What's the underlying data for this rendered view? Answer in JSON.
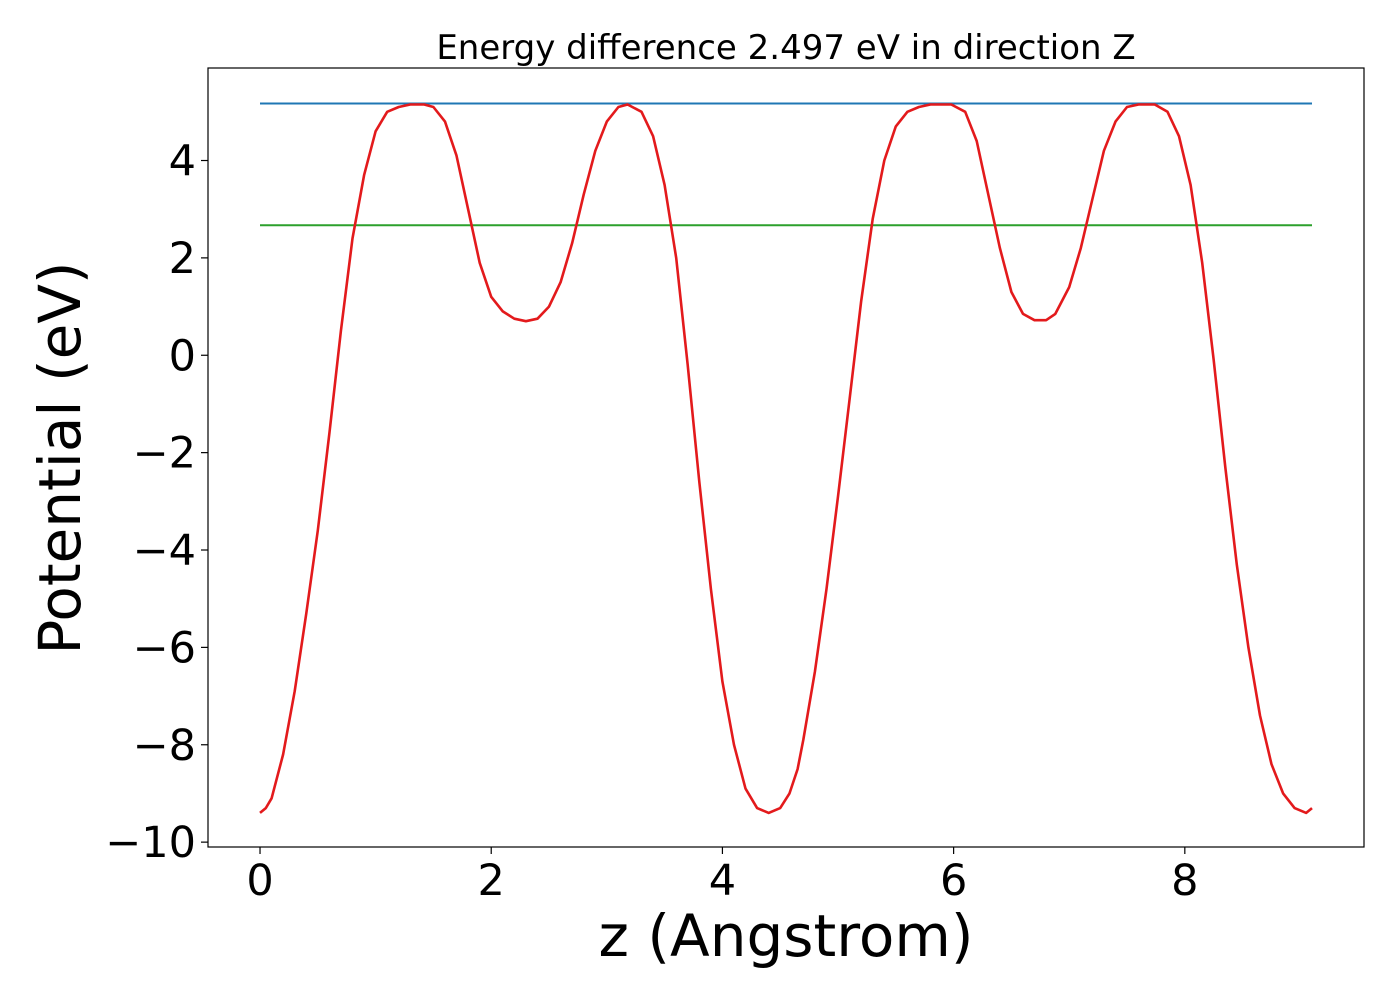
{
  "chart_data": {
    "type": "line",
    "title": "Energy difference 2.497 eV in direction Z",
    "xlabel": "z (Angstrom)",
    "ylabel": "Potential (eV)",
    "xlim": [
      -0.45,
      9.55
    ],
    "ylim": [
      -10.1,
      5.9
    ],
    "x_ticks": [
      0,
      2,
      4,
      6,
      8
    ],
    "x_tick_labels": [
      "0",
      "2",
      "4",
      "6",
      "8"
    ],
    "y_ticks": [
      -10,
      -8,
      -6,
      -4,
      -2,
      0,
      2,
      4
    ],
    "y_tick_labels": [
      "−10",
      "−8",
      "−6",
      "−4",
      "−2",
      "0",
      "2",
      "4"
    ],
    "grid": false,
    "series": [
      {
        "color": "#1f77b4",
        "x": [
          0,
          9.1
        ],
        "y": [
          5.17,
          5.17
        ]
      },
      {
        "color": "#2ca02c",
        "x": [
          0,
          9.1
        ],
        "y": [
          2.67,
          2.67
        ]
      },
      {
        "color": "#e31a1c",
        "x": [
          0.0,
          0.05,
          0.1,
          0.2,
          0.3,
          0.4,
          0.5,
          0.6,
          0.7,
          0.8,
          0.9,
          1.0,
          1.1,
          1.2,
          1.3,
          1.42,
          1.5,
          1.6,
          1.7,
          1.8,
          1.9,
          2.0,
          2.1,
          2.2,
          2.3,
          2.4,
          2.5,
          2.6,
          2.7,
          2.8,
          2.9,
          3.0,
          3.1,
          3.18,
          3.3,
          3.4,
          3.5,
          3.6,
          3.7,
          3.8,
          3.9,
          4.0,
          4.1,
          4.2,
          4.3,
          4.4,
          4.5,
          4.58,
          4.65,
          4.7,
          4.8,
          4.9,
          5.0,
          5.1,
          5.2,
          5.3,
          5.4,
          5.5,
          5.6,
          5.7,
          5.8,
          5.9,
          5.98,
          6.1,
          6.2,
          6.3,
          6.4,
          6.5,
          6.6,
          6.7,
          6.8,
          6.88,
          7.0,
          7.1,
          7.2,
          7.3,
          7.4,
          7.5,
          7.6,
          7.74,
          7.85,
          7.95,
          8.05,
          8.15,
          8.25,
          8.35,
          8.45,
          8.55,
          8.65,
          8.75,
          8.85,
          8.95,
          9.05,
          9.1
        ],
        "y": [
          -9.4,
          -9.3,
          -9.1,
          -8.2,
          -6.9,
          -5.3,
          -3.6,
          -1.6,
          0.5,
          2.4,
          3.7,
          4.6,
          5.0,
          5.1,
          5.15,
          5.15,
          5.1,
          4.8,
          4.1,
          3.0,
          1.9,
          1.2,
          0.9,
          0.75,
          0.7,
          0.75,
          1.0,
          1.5,
          2.3,
          3.3,
          4.2,
          4.8,
          5.1,
          5.15,
          5.0,
          4.5,
          3.5,
          2.0,
          -0.2,
          -2.6,
          -4.8,
          -6.7,
          -8.0,
          -8.9,
          -9.3,
          -9.4,
          -9.3,
          -9.0,
          -8.5,
          -7.9,
          -6.5,
          -4.8,
          -2.9,
          -0.9,
          1.1,
          2.8,
          4.0,
          4.7,
          5.0,
          5.1,
          5.15,
          5.15,
          5.15,
          5.0,
          4.4,
          3.3,
          2.2,
          1.3,
          0.85,
          0.72,
          0.72,
          0.85,
          1.4,
          2.2,
          3.2,
          4.2,
          4.8,
          5.1,
          5.15,
          5.15,
          5.0,
          4.5,
          3.5,
          1.9,
          -0.1,
          -2.3,
          -4.3,
          -6.0,
          -7.4,
          -8.4,
          -9.0,
          -9.3,
          -9.4,
          -9.3
        ]
      }
    ]
  }
}
